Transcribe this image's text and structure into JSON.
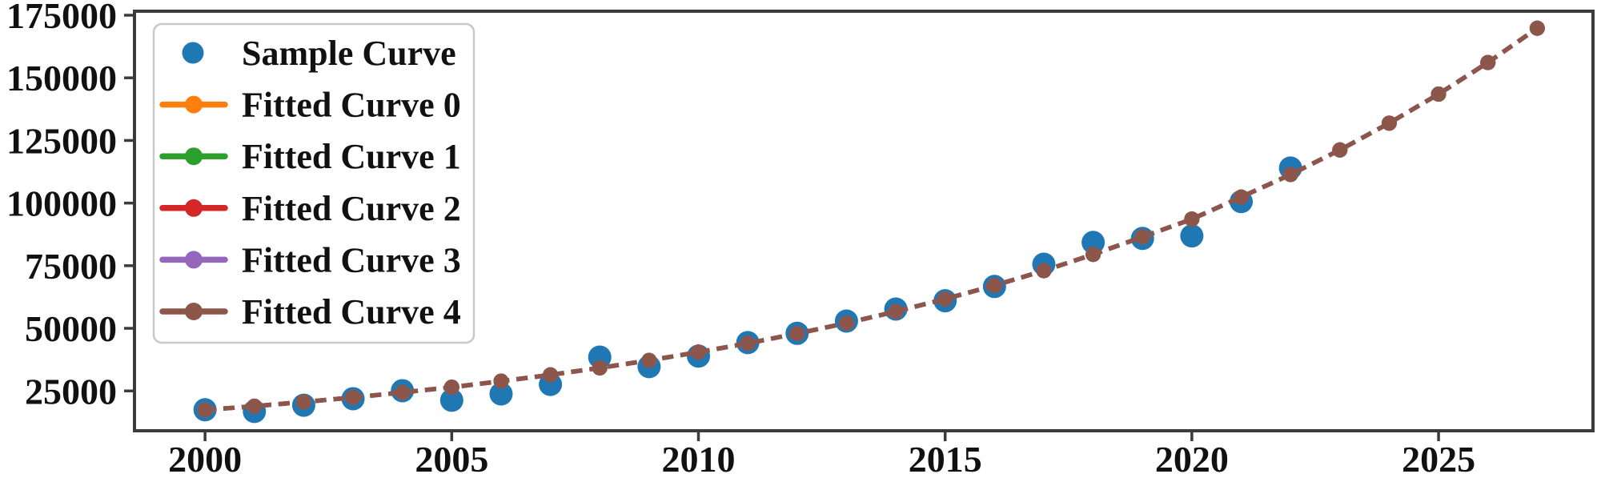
{
  "figure": {
    "background": "#ffffff",
    "frame_color": "#3b3b3b",
    "text_color": "#111111"
  },
  "chart_data": {
    "type": "scatter",
    "title": "",
    "xlabel": "",
    "ylabel": "",
    "grid": false,
    "x_axis": {
      "range": [
        1998.57,
        2028.13
      ],
      "ticks": [
        2000,
        2005,
        2010,
        2015,
        2020,
        2025
      ],
      "tick_labels": [
        "2000",
        "2005",
        "2010",
        "2015",
        "2020",
        "2025"
      ]
    },
    "y_axis": {
      "range": [
        9100,
        176600
      ],
      "ticks": [
        25000,
        50000,
        75000,
        100000,
        125000,
        150000,
        175000
      ],
      "tick_labels": [
        "25000",
        "50000",
        "75000",
        "100000",
        "125000",
        "150000",
        "175000"
      ]
    },
    "legend": {
      "position": "upper left",
      "entries": [
        "Sample Curve",
        "Fitted Curve 0",
        "Fitted Curve 1",
        "Fitted Curve 2",
        "Fitted Curve 3",
        "Fitted Curve 4"
      ]
    },
    "series": [
      {
        "name": "Sample Curve",
        "type": "scatter",
        "marker": "circle",
        "color": "#1f77b4",
        "x": [
          2000,
          2001,
          2002,
          2003,
          2004,
          2005,
          2006,
          2007,
          2008,
          2009,
          2010,
          2011,
          2012,
          2013,
          2014,
          2015,
          2016,
          2017,
          2018,
          2019,
          2020,
          2021,
          2022
        ],
        "y": [
          17500,
          16800,
          19300,
          21900,
          25100,
          21300,
          23800,
          27600,
          38500,
          34700,
          38900,
          44300,
          48000,
          52900,
          57700,
          61000,
          66700,
          75600,
          84300,
          85900,
          86900,
          100600,
          114000
        ]
      },
      {
        "name": "Fitted Curve 0",
        "type": "line",
        "linestyle": "dashed",
        "marker": "circle",
        "color": "#ff7f0e",
        "x": [
          2000,
          2001,
          2002,
          2003,
          2004,
          2005,
          2006,
          2007,
          2008,
          2009,
          2010,
          2011,
          2012,
          2013,
          2014,
          2015,
          2016,
          2017,
          2018,
          2019,
          2020,
          2021,
          2022,
          2023,
          2024,
          2025,
          2026,
          2027
        ],
        "y": [
          17400,
          18900,
          20600,
          22400,
          24400,
          26500,
          28900,
          31400,
          34200,
          37200,
          40500,
          44000,
          47900,
          52100,
          56700,
          61700,
          67100,
          73000,
          79500,
          86500,
          93600,
          102400,
          111400,
          121200,
          131900,
          143500,
          156100,
          169800
        ]
      },
      {
        "name": "Fitted Curve 1",
        "type": "line",
        "linestyle": "dashed",
        "marker": "circle",
        "color": "#2ca02c",
        "x": [
          2000,
          2001,
          2002,
          2003,
          2004,
          2005,
          2006,
          2007,
          2008,
          2009,
          2010,
          2011,
          2012,
          2013,
          2014,
          2015,
          2016,
          2017,
          2018,
          2019,
          2020,
          2021,
          2022,
          2023,
          2024,
          2025,
          2026,
          2027
        ],
        "y": [
          17400,
          18900,
          20600,
          22400,
          24400,
          26500,
          28900,
          31400,
          34200,
          37200,
          40500,
          44000,
          47900,
          52100,
          56700,
          61700,
          67100,
          73000,
          79500,
          86500,
          93600,
          102400,
          111400,
          121200,
          131900,
          143500,
          156100,
          169800
        ]
      },
      {
        "name": "Fitted Curve 2",
        "type": "line",
        "linestyle": "dashed",
        "marker": "circle",
        "color": "#d62728",
        "x": [
          2000,
          2001,
          2002,
          2003,
          2004,
          2005,
          2006,
          2007,
          2008,
          2009,
          2010,
          2011,
          2012,
          2013,
          2014,
          2015,
          2016,
          2017,
          2018,
          2019,
          2020,
          2021,
          2022,
          2023,
          2024,
          2025,
          2026,
          2027
        ],
        "y": [
          17400,
          18900,
          20600,
          22400,
          24400,
          26500,
          28900,
          31400,
          34200,
          37200,
          40500,
          44000,
          47900,
          52100,
          56700,
          61700,
          67100,
          73000,
          79500,
          86500,
          93600,
          102400,
          111400,
          121200,
          131900,
          143500,
          156100,
          169800
        ]
      },
      {
        "name": "Fitted Curve 3",
        "type": "line",
        "linestyle": "dashed",
        "marker": "circle",
        "color": "#9467bd",
        "x": [
          2000,
          2001,
          2002,
          2003,
          2004,
          2005,
          2006,
          2007,
          2008,
          2009,
          2010,
          2011,
          2012,
          2013,
          2014,
          2015,
          2016,
          2017,
          2018,
          2019,
          2020,
          2021,
          2022,
          2023,
          2024,
          2025,
          2026,
          2027
        ],
        "y": [
          17400,
          18900,
          20600,
          22400,
          24400,
          26500,
          28900,
          31400,
          34200,
          37200,
          40500,
          44000,
          47900,
          52100,
          56700,
          61700,
          67100,
          73000,
          79500,
          86500,
          93600,
          102400,
          111400,
          121200,
          131900,
          143500,
          156100,
          169800
        ]
      },
      {
        "name": "Fitted Curve 4",
        "type": "line",
        "linestyle": "dashed",
        "marker": "circle",
        "color": "#8c564b",
        "x": [
          2000,
          2001,
          2002,
          2003,
          2004,
          2005,
          2006,
          2007,
          2008,
          2009,
          2010,
          2011,
          2012,
          2013,
          2014,
          2015,
          2016,
          2017,
          2018,
          2019,
          2020,
          2021,
          2022,
          2023,
          2024,
          2025,
          2026,
          2027
        ],
        "y": [
          17400,
          18900,
          20600,
          22400,
          24400,
          26500,
          28900,
          31400,
          34200,
          37200,
          40500,
          44000,
          47900,
          52100,
          56700,
          61700,
          67100,
          73000,
          79500,
          86500,
          93600,
          102400,
          111400,
          121200,
          131900,
          143500,
          156100,
          169800
        ]
      }
    ]
  }
}
